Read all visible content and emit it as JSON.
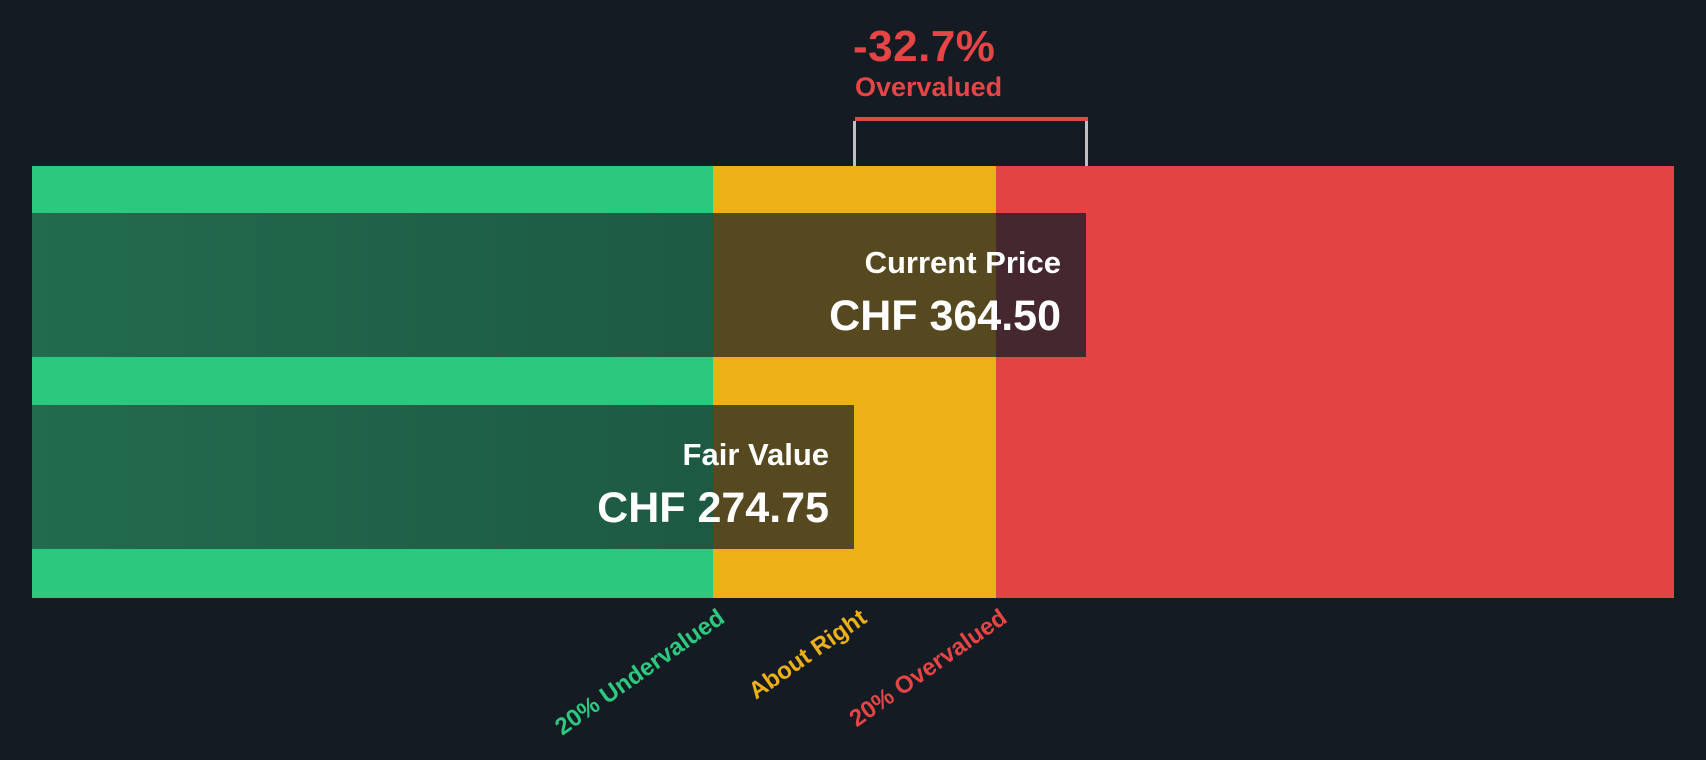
{
  "annotation": {
    "delta": "-32.7%",
    "status": "Overvalued"
  },
  "current_price": {
    "label": "Current Price",
    "value": "CHF 364.50"
  },
  "fair_value": {
    "label": "Fair Value",
    "value": "CHF 274.75"
  },
  "axis": {
    "labels": [
      {
        "text": "20% Undervalued",
        "color": "#2DC97E"
      },
      {
        "text": "About Right",
        "color": "#ECB117"
      },
      {
        "text": "20% Overvalued",
        "color": "#E64545"
      }
    ]
  },
  "colors": {
    "background": "#151B23",
    "zone_green": "#2CC87D",
    "zone_amber": "#ECB117",
    "zone_red": "#E44343",
    "shaded_green": "#205E46",
    "shaded_amber": "#57491F",
    "shaded_red": "#452730",
    "annotation_red": "#E64545",
    "marker_line": "rgba(255,255,255,0.72)",
    "price_text": "#FFFFFF"
  },
  "chart_data": {
    "type": "bar",
    "subtype": "valuation-gauge",
    "title": "-32.7% Overvalued",
    "currency": "CHF",
    "bars": [
      {
        "name": "Current Price",
        "value": 364.5
      },
      {
        "name": "Fair Value",
        "value": 274.75
      }
    ],
    "discount_pct": -32.7,
    "verdict": "Overvalued",
    "zones": [
      "20% Undervalued",
      "About Right",
      "20% Overvalued"
    ],
    "zone_colors": [
      "#2CC87D",
      "#ECB117",
      "#E44343"
    ],
    "legend_position": "none",
    "grid": false
  }
}
